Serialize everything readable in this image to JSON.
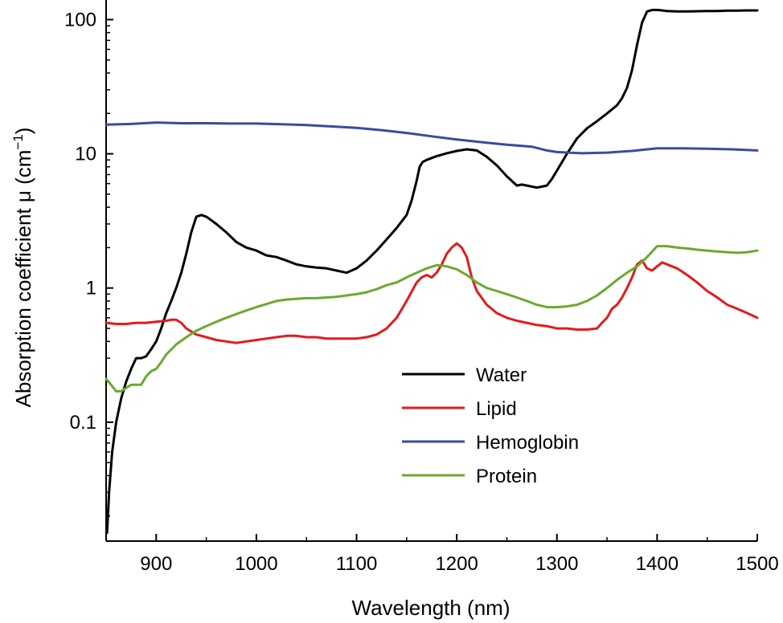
{
  "chart_data": {
    "type": "line",
    "title": "",
    "xlabel": "Wavelength (nm)",
    "ylabel_prefix": "Absorption coefficient μ (cm",
    "ylabel_sup": "−1",
    "ylabel_suffix": ")",
    "yscale": "log",
    "xlim": [
      850,
      1500
    ],
    "ylim": [
      0.013,
      140
    ],
    "xticks": [
      900,
      1000,
      1100,
      1200,
      1300,
      1400,
      1500
    ],
    "yticks": [
      0.1,
      1,
      10,
      100
    ],
    "ytick_labels": [
      "0.1",
      "1",
      "10",
      "100"
    ],
    "legend_position": "center-right",
    "grid": false,
    "series": [
      {
        "name": "Water",
        "color": "#000000",
        "x": [
          851,
          853,
          856,
          860,
          865,
          870,
          875,
          880,
          885,
          890,
          895,
          900,
          905,
          910,
          915,
          920,
          925,
          930,
          935,
          940,
          945,
          950,
          955,
          960,
          970,
          980,
          990,
          1000,
          1010,
          1020,
          1030,
          1040,
          1050,
          1060,
          1070,
          1080,
          1090,
          1100,
          1110,
          1120,
          1130,
          1140,
          1150,
          1155,
          1160,
          1163,
          1166,
          1170,
          1175,
          1180,
          1190,
          1200,
          1210,
          1220,
          1230,
          1240,
          1250,
          1260,
          1265,
          1270,
          1280,
          1290,
          1295,
          1300,
          1310,
          1320,
          1330,
          1340,
          1350,
          1360,
          1365,
          1370,
          1375,
          1380,
          1385,
          1390,
          1395,
          1400,
          1405,
          1410,
          1420,
          1430,
          1440,
          1450,
          1460,
          1470,
          1480,
          1490,
          1500
        ],
        "y": [
          0.015,
          0.03,
          0.06,
          0.1,
          0.15,
          0.2,
          0.25,
          0.3,
          0.3,
          0.31,
          0.35,
          0.4,
          0.5,
          0.65,
          0.8,
          1.0,
          1.3,
          1.8,
          2.6,
          3.4,
          3.5,
          3.4,
          3.2,
          3.0,
          2.6,
          2.2,
          2.0,
          1.9,
          1.75,
          1.7,
          1.6,
          1.5,
          1.45,
          1.42,
          1.4,
          1.35,
          1.3,
          1.4,
          1.6,
          1.9,
          2.3,
          2.8,
          3.5,
          4.5,
          6.3,
          8.0,
          8.7,
          9.0,
          9.3,
          9.6,
          10.1,
          10.5,
          10.8,
          10.6,
          9.5,
          8.2,
          6.8,
          5.8,
          5.9,
          5.8,
          5.6,
          5.8,
          6.5,
          7.5,
          10.0,
          13.0,
          15.5,
          17.5,
          20.0,
          23.0,
          26.0,
          31.0,
          42.0,
          65.0,
          95.0,
          115.0,
          118.0,
          118.0,
          117.0,
          116.0,
          115.0,
          115.0,
          115.5,
          116.0,
          116.0,
          116.5,
          116.5,
          117.0,
          117.0
        ]
      },
      {
        "name": "Lipid",
        "color": "#e41a1c",
        "x": [
          850,
          860,
          870,
          880,
          890,
          900,
          910,
          915,
          920,
          925,
          930,
          940,
          950,
          960,
          970,
          980,
          990,
          1000,
          1010,
          1020,
          1030,
          1040,
          1050,
          1060,
          1070,
          1080,
          1090,
          1100,
          1110,
          1120,
          1130,
          1140,
          1150,
          1160,
          1165,
          1170,
          1175,
          1180,
          1185,
          1190,
          1195,
          1200,
          1205,
          1210,
          1215,
          1220,
          1230,
          1240,
          1250,
          1260,
          1270,
          1280,
          1290,
          1300,
          1310,
          1320,
          1330,
          1340,
          1345,
          1350,
          1355,
          1360,
          1365,
          1370,
          1375,
          1380,
          1385,
          1390,
          1395,
          1400,
          1405,
          1410,
          1420,
          1430,
          1440,
          1450,
          1460,
          1470,
          1480,
          1490,
          1500
        ],
        "y": [
          0.55,
          0.54,
          0.54,
          0.55,
          0.55,
          0.56,
          0.57,
          0.58,
          0.58,
          0.55,
          0.5,
          0.45,
          0.43,
          0.41,
          0.4,
          0.39,
          0.4,
          0.41,
          0.42,
          0.43,
          0.44,
          0.44,
          0.43,
          0.43,
          0.42,
          0.42,
          0.42,
          0.42,
          0.43,
          0.45,
          0.5,
          0.6,
          0.8,
          1.1,
          1.2,
          1.25,
          1.2,
          1.3,
          1.5,
          1.8,
          2.0,
          2.15,
          2.0,
          1.7,
          1.2,
          0.95,
          0.75,
          0.65,
          0.6,
          0.57,
          0.55,
          0.53,
          0.52,
          0.5,
          0.5,
          0.49,
          0.49,
          0.5,
          0.55,
          0.6,
          0.7,
          0.75,
          0.85,
          1.0,
          1.2,
          1.5,
          1.6,
          1.4,
          1.35,
          1.45,
          1.55,
          1.5,
          1.4,
          1.25,
          1.1,
          0.95,
          0.85,
          0.75,
          0.7,
          0.65,
          0.6
        ]
      },
      {
        "name": "Hemoglobin",
        "color": "#3a4ba0",
        "x": [
          850,
          875,
          900,
          925,
          950,
          975,
          1000,
          1025,
          1050,
          1075,
          1100,
          1125,
          1150,
          1175,
          1200,
          1225,
          1250,
          1275,
          1290,
          1300,
          1325,
          1350,
          1375,
          1400,
          1425,
          1450,
          1475,
          1500
        ],
        "y": [
          16.5,
          16.7,
          17.1,
          16.9,
          16.9,
          16.8,
          16.8,
          16.6,
          16.4,
          16.0,
          15.6,
          15.0,
          14.3,
          13.5,
          12.8,
          12.2,
          11.7,
          11.3,
          10.6,
          10.3,
          10.1,
          10.2,
          10.5,
          11.0,
          11.0,
          10.9,
          10.8,
          10.6
        ]
      },
      {
        "name": "Protein",
        "color": "#6aaa2e",
        "x": [
          850,
          855,
          860,
          865,
          870,
          875,
          880,
          885,
          890,
          895,
          900,
          905,
          910,
          920,
          930,
          940,
          950,
          960,
          970,
          980,
          990,
          1000,
          1010,
          1020,
          1030,
          1040,
          1050,
          1060,
          1070,
          1080,
          1090,
          1100,
          1110,
          1120,
          1130,
          1140,
          1150,
          1160,
          1170,
          1180,
          1190,
          1200,
          1210,
          1220,
          1230,
          1240,
          1250,
          1260,
          1270,
          1280,
          1290,
          1300,
          1310,
          1320,
          1330,
          1340,
          1350,
          1360,
          1370,
          1380,
          1390,
          1400,
          1410,
          1420,
          1430,
          1440,
          1450,
          1460,
          1470,
          1480,
          1490,
          1500
        ],
        "y": [
          0.21,
          0.19,
          0.17,
          0.17,
          0.18,
          0.19,
          0.19,
          0.19,
          0.22,
          0.24,
          0.25,
          0.28,
          0.32,
          0.38,
          0.43,
          0.48,
          0.52,
          0.56,
          0.6,
          0.64,
          0.68,
          0.72,
          0.76,
          0.8,
          0.82,
          0.83,
          0.84,
          0.84,
          0.85,
          0.86,
          0.88,
          0.9,
          0.93,
          0.98,
          1.05,
          1.1,
          1.2,
          1.3,
          1.4,
          1.48,
          1.45,
          1.38,
          1.25,
          1.1,
          1.0,
          0.95,
          0.9,
          0.85,
          0.8,
          0.75,
          0.72,
          0.72,
          0.73,
          0.75,
          0.8,
          0.88,
          1.0,
          1.15,
          1.3,
          1.45,
          1.7,
          2.05,
          2.05,
          2.0,
          1.97,
          1.93,
          1.9,
          1.87,
          1.85,
          1.83,
          1.85,
          1.9
        ]
      }
    ]
  }
}
